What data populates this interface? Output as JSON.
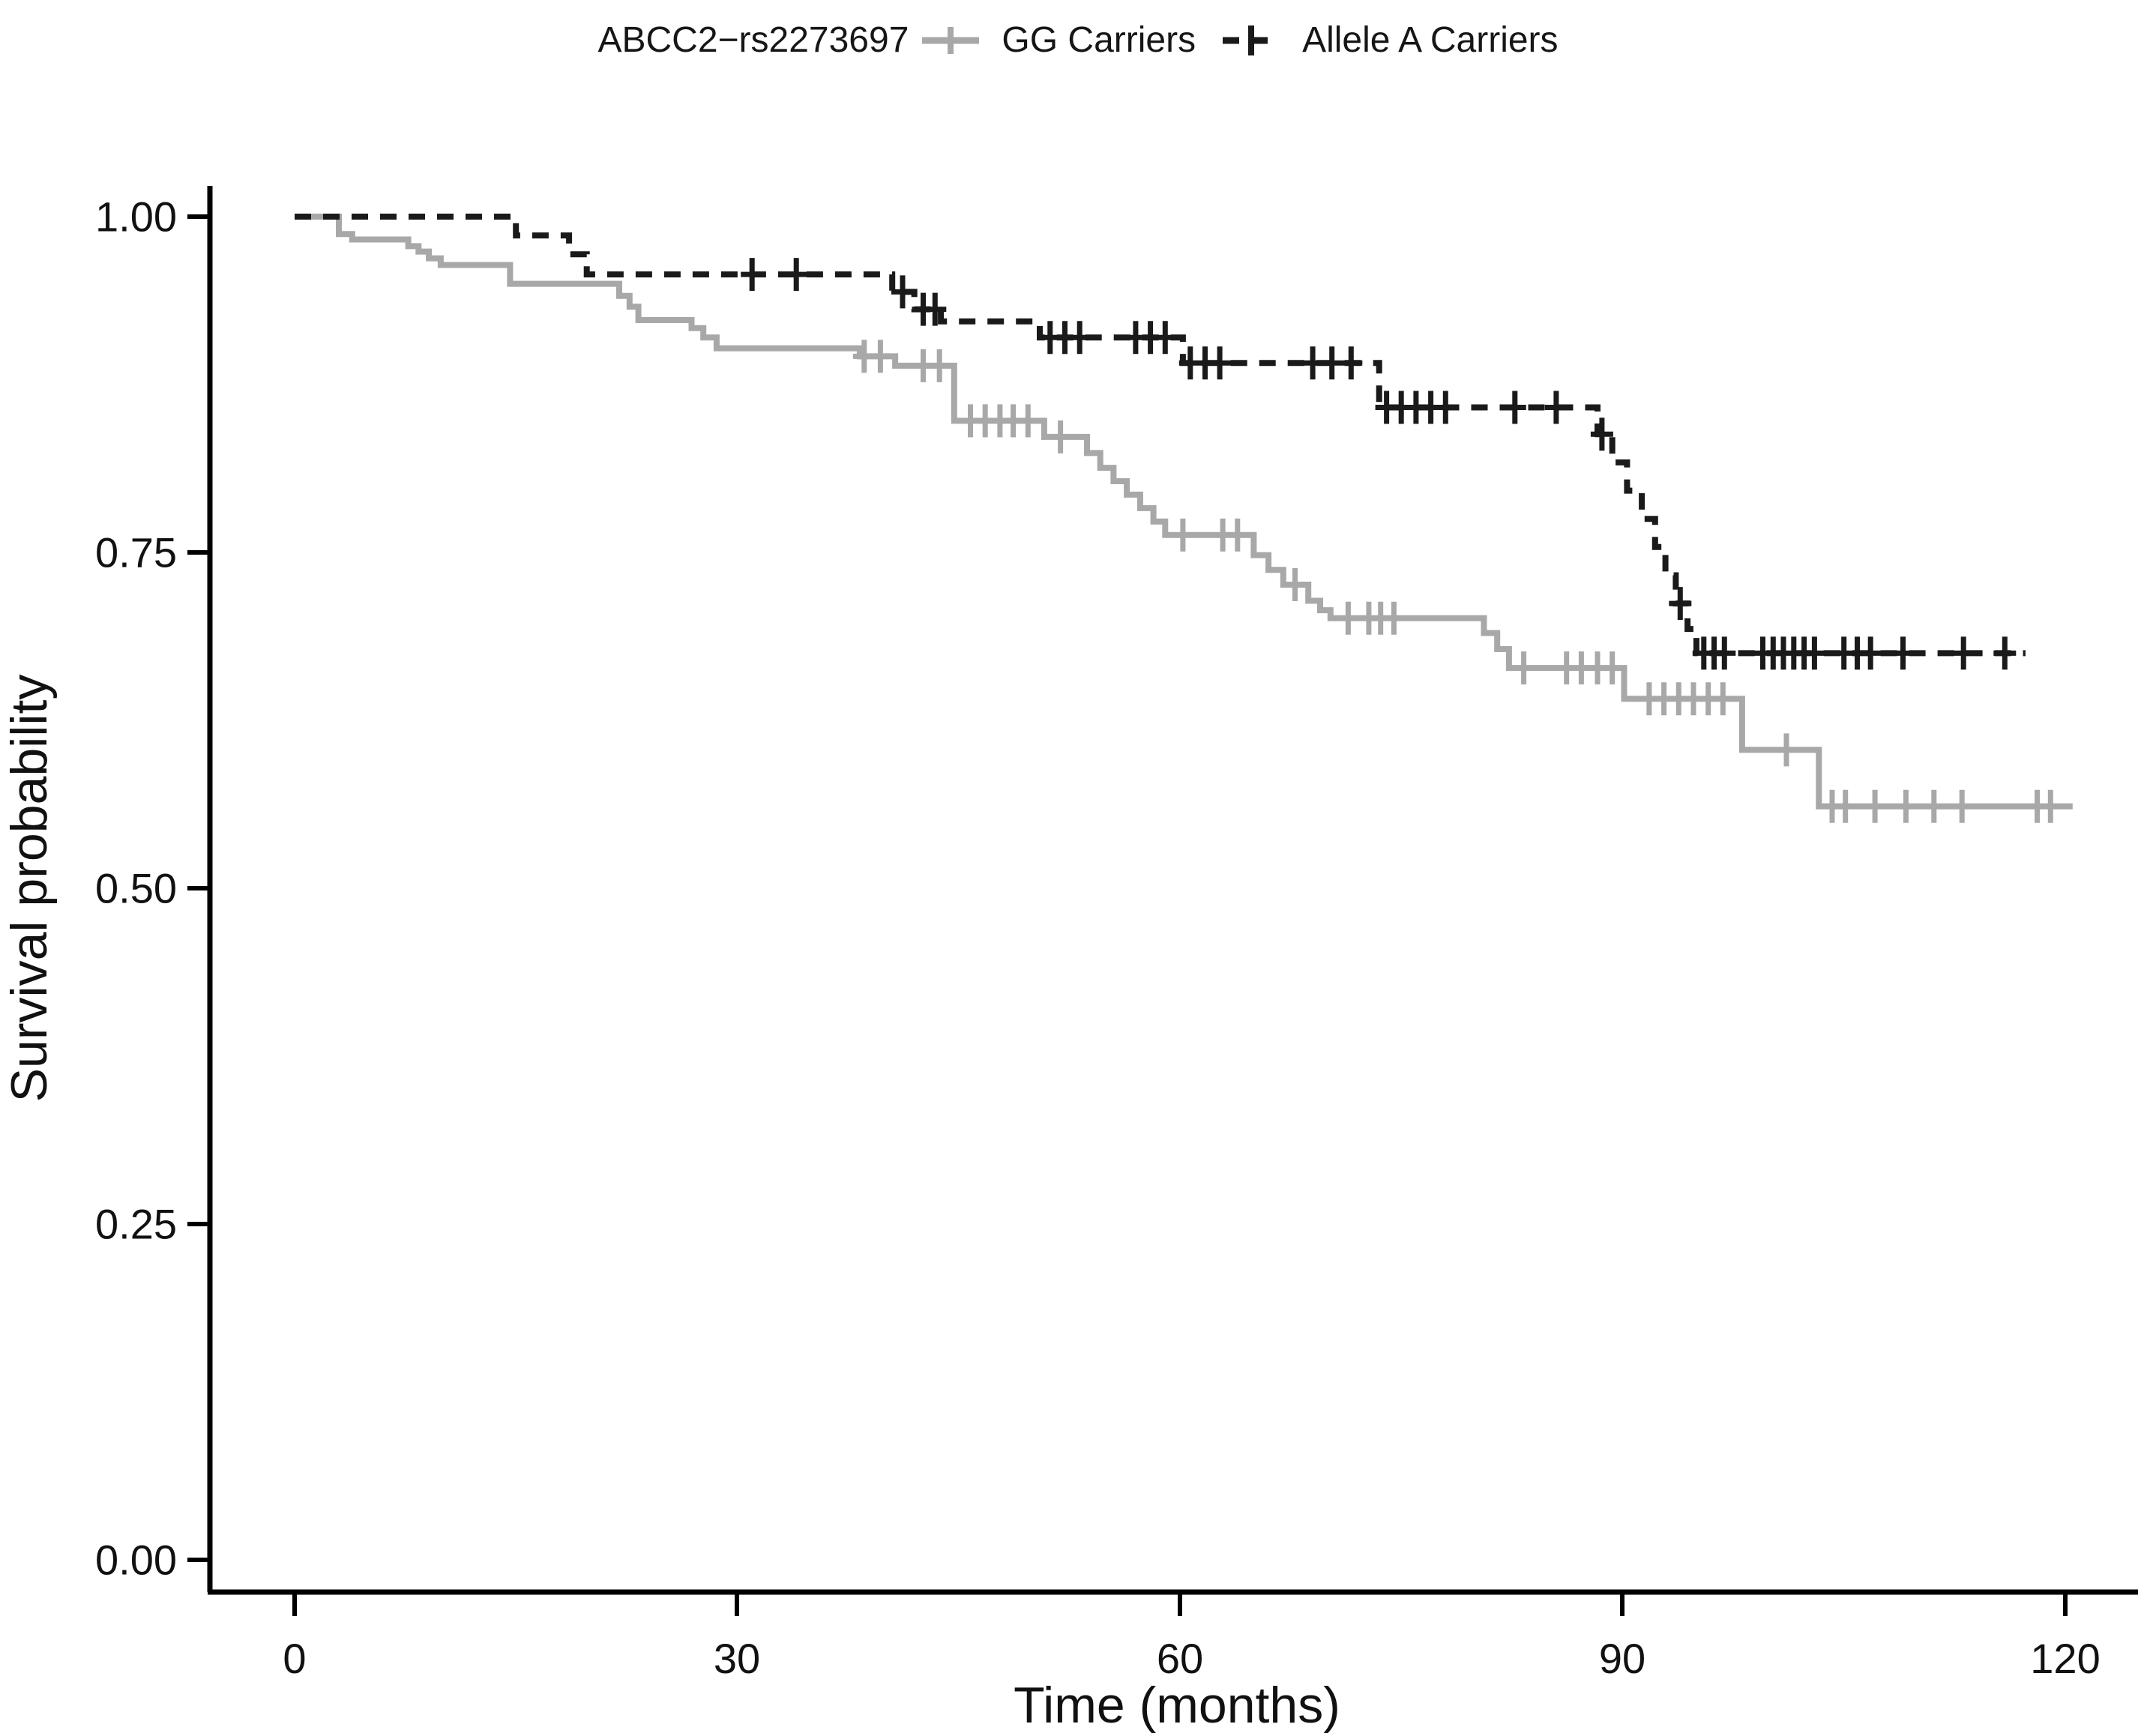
{
  "legend": {
    "title": "ABCC2−rs2273697",
    "gg_key_icon": "gray-solid-line-with-plus-censor-mark",
    "allele_key_icon": "black-dashed-line-with-plus-censor-mark"
  },
  "axes": {
    "x_label": "Time (months)",
    "y_label": "Survival probability",
    "x_tick_labels": [
      "0",
      "30",
      "60",
      "90",
      "120"
    ],
    "y_tick_labels": [
      "0.00",
      "0.25",
      "0.50",
      "0.75",
      "1.00"
    ]
  },
  "chart_data": {
    "type": "line",
    "subtype": "kaplan-meier-step-curves",
    "title": "ABCC2−rs2273697",
    "xlabel": "Time (months)",
    "ylabel": "Survival probability",
    "xlim": [
      0,
      120
    ],
    "ylim": [
      0.0,
      1.0
    ],
    "x_ticks": [
      0,
      30,
      60,
      90,
      120
    ],
    "y_ticks": [
      0.0,
      0.25,
      0.5,
      0.75,
      1.0
    ],
    "grid": "off",
    "legend_position": "top-center",
    "censor_marker": "plus",
    "series": [
      {
        "name": "GG Carriers",
        "color": "#a8a8a8",
        "dash": "solid",
        "end_time": 120.5,
        "steps": [
          [
            0,
            1.0
          ],
          [
            3.0,
            0.987
          ],
          [
            3.9,
            0.983
          ],
          [
            7.7,
            0.978
          ],
          [
            8.4,
            0.974
          ],
          [
            9.1,
            0.969
          ],
          [
            9.9,
            0.964
          ],
          [
            14.6,
            0.95
          ],
          [
            22.0,
            0.941
          ],
          [
            22.7,
            0.933
          ],
          [
            23.3,
            0.923
          ],
          [
            26.9,
            0.917
          ],
          [
            27.7,
            0.91
          ],
          [
            28.6,
            0.902
          ],
          [
            38.3,
            0.896
          ],
          [
            40.7,
            0.889
          ],
          [
            44.7,
            0.848
          ],
          [
            50.8,
            0.836
          ],
          [
            53.7,
            0.824
          ],
          [
            54.6,
            0.813
          ],
          [
            55.5,
            0.803
          ],
          [
            56.4,
            0.793
          ],
          [
            57.3,
            0.783
          ],
          [
            58.2,
            0.773
          ],
          [
            59.0,
            0.763
          ],
          [
            65.0,
            0.748
          ],
          [
            66.0,
            0.737
          ],
          [
            67.0,
            0.726
          ],
          [
            68.7,
            0.714
          ],
          [
            69.5,
            0.707
          ],
          [
            70.2,
            0.701
          ],
          [
            80.6,
            0.69
          ],
          [
            81.5,
            0.678
          ],
          [
            82.3,
            0.664
          ],
          [
            90.1,
            0.641
          ],
          [
            98.1,
            0.603
          ],
          [
            103.3,
            0.561
          ]
        ],
        "censor_times": [
          38.6,
          39.7,
          42.6,
          43.7,
          45.8,
          46.8,
          47.8,
          48.7,
          49.7,
          51.9,
          60.2,
          62.9,
          63.9,
          67.8,
          71.4,
          72.8,
          73.6,
          74.5,
          83.3,
          86.2,
          87.2,
          88.3,
          89.3,
          91.8,
          92.8,
          93.8,
          94.8,
          95.8,
          96.8,
          101.1,
          104.2,
          105.1,
          107.1,
          109.2,
          111.1,
          113.0,
          118.1,
          119.0
        ]
      },
      {
        "name": "Allele A Carriers",
        "color": "#1a1a1a",
        "dash": "dashed",
        "end_time": 117.3,
        "steps": [
          [
            0,
            1.0
          ],
          [
            15.0,
            0.986
          ],
          [
            18.6,
            0.972
          ],
          [
            19.8,
            0.957
          ],
          [
            40.5,
            0.944
          ],
          [
            42.0,
            0.931
          ],
          [
            43.8,
            0.922
          ],
          [
            50.5,
            0.91
          ],
          [
            60.2,
            0.891
          ],
          [
            73.5,
            0.858
          ],
          [
            88.3,
            0.838
          ],
          [
            89.3,
            0.817
          ],
          [
            90.3,
            0.796
          ],
          [
            91.3,
            0.775
          ],
          [
            92.2,
            0.754
          ],
          [
            92.9,
            0.733
          ],
          [
            93.6,
            0.712
          ],
          [
            94.4,
            0.693
          ],
          [
            95.0,
            0.675
          ]
        ],
        "censor_times": [
          31.0,
          34.0,
          41.2,
          42.6,
          43.4,
          51.2,
          52.2,
          53.2,
          57.0,
          58.0,
          59.0,
          60.7,
          61.7,
          62.7,
          69.0,
          70.3,
          71.6,
          74.0,
          75.0,
          76.0,
          77.0,
          78.0,
          82.7,
          85.5,
          88.6,
          93.9,
          95.5,
          96.2,
          96.9,
          99.5,
          100.2,
          100.9,
          101.6,
          102.3,
          103.0,
          105.0,
          105.9,
          106.8,
          109.0,
          113.1,
          115.9
        ]
      }
    ]
  }
}
